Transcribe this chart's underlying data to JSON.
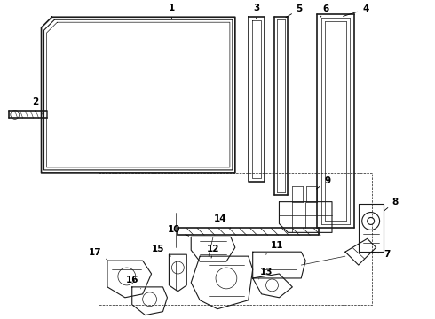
{
  "bg_color": "#ffffff",
  "line_color": "#1a1a1a",
  "lw_main": 1.2,
  "lw_med": 0.8,
  "lw_thin": 0.5,
  "label_fs": 7.5,
  "figsize": [
    4.9,
    3.6
  ],
  "dpi": 100
}
